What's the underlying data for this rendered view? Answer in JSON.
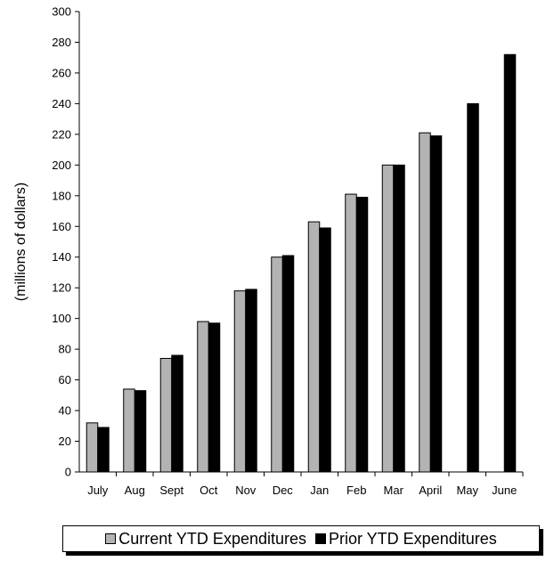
{
  "chart_data": {
    "type": "bar",
    "title": "",
    "xlabel": "",
    "ylabel": "(millions of dollars)",
    "ylim": [
      0,
      300
    ],
    "yticks": [
      0,
      20,
      40,
      60,
      80,
      100,
      120,
      140,
      160,
      180,
      200,
      220,
      240,
      260,
      280,
      300
    ],
    "categories": [
      "July",
      "Aug",
      "Sept",
      "Oct",
      "Nov",
      "Dec",
      "Jan",
      "Feb",
      "Mar",
      "April",
      "May",
      "June"
    ],
    "series": [
      {
        "name": "Current YTD Expenditures",
        "color": "#b3b3b3",
        "values": [
          32,
          54,
          74,
          98,
          118,
          140,
          163,
          181,
          200,
          221,
          null,
          null
        ]
      },
      {
        "name": "Prior YTD Expenditures",
        "color": "#000000",
        "values": [
          29,
          53,
          76,
          97,
          119,
          141,
          159,
          179,
          200,
          219,
          240,
          272
        ]
      }
    ],
    "grid": false,
    "legend_position": "bottom"
  }
}
